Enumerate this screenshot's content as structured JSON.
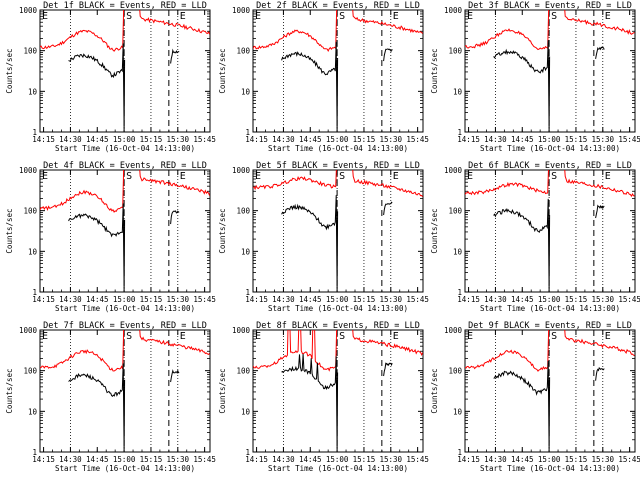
{
  "figure": {
    "background": "#ffffff",
    "colors": {
      "events": "#000000",
      "lld": "#ff0000",
      "axes": "#000000"
    }
  },
  "chart_data": [
    {
      "type": "line",
      "title": "Det 1f BLACK = Events, RED = LLD",
      "ylabel": "Counts/sec",
      "xlabel": "Start Time (16-Oct-04 14:13:00)",
      "xticks": [
        "14:15",
        "14:30",
        "14:45",
        "15:00",
        "15:15",
        "15:30",
        "15:45"
      ],
      "yticks": [
        "1",
        "10",
        "100",
        "1000"
      ],
      "ylim": [
        1,
        1000
      ],
      "yscale": "log",
      "xlim_minutes": [
        0,
        95
      ],
      "grid": false,
      "markers": [
        {
          "label": "E",
          "t": 0,
          "style": "none"
        },
        {
          "label": "",
          "t": 17,
          "style": "dotted"
        },
        {
          "label": "S",
          "t": 47,
          "style": "dotted"
        },
        {
          "label": "",
          "t": 62,
          "style": "dotted"
        },
        {
          "label": "E",
          "t": 77,
          "style": "dotted"
        }
      ],
      "dashed": [
        {
          "t": 47
        },
        {
          "t": 72
        }
      ],
      "variant": "normal",
      "black_scale": 1.0,
      "red_scale": 1.0
    },
    {
      "type": "line",
      "title": "Det 2f BLACK = Events, RED = LLD",
      "ylabel": "Counts/sec",
      "xlabel": "Start Time (16-Oct-04 14:13:00)",
      "xticks": [
        "14:15",
        "14:30",
        "14:45",
        "15:00",
        "15:15",
        "15:30",
        "15:45"
      ],
      "yticks": [
        "1",
        "10",
        "100",
        "1000"
      ],
      "ylim": [
        1,
        1000
      ],
      "yscale": "log",
      "xlim_minutes": [
        0,
        95
      ],
      "grid": false,
      "markers": [
        {
          "label": "E",
          "t": 0,
          "style": "none"
        },
        {
          "label": "",
          "t": 17,
          "style": "dotted"
        },
        {
          "label": "S",
          "t": 47,
          "style": "dotted"
        },
        {
          "label": "",
          "t": 62,
          "style": "dotted"
        },
        {
          "label": "E",
          "t": 77,
          "style": "dotted"
        }
      ],
      "dashed": [
        {
          "t": 47
        },
        {
          "t": 72
        }
      ],
      "variant": "normal",
      "black_scale": 1.1,
      "red_scale": 1.0
    },
    {
      "type": "line",
      "title": "Det 3f BLACK = Events, RED = LLD",
      "ylabel": "Counts/sec",
      "xlabel": "Start Time (16-Oct-04 14:13:00)",
      "xticks": [
        "14:15",
        "14:30",
        "14:45",
        "15:00",
        "15:15",
        "15:30",
        "15:45"
      ],
      "yticks": [
        "1",
        "10",
        "100",
        "1000"
      ],
      "ylim": [
        1,
        1000
      ],
      "yscale": "log",
      "xlim_minutes": [
        0,
        95
      ],
      "grid": false,
      "markers": [
        {
          "label": "E",
          "t": 0,
          "style": "none"
        },
        {
          "label": "",
          "t": 17,
          "style": "dotted"
        },
        {
          "label": "S",
          "t": 47,
          "style": "dotted"
        },
        {
          "label": "",
          "t": 62,
          "style": "dotted"
        },
        {
          "label": "E",
          "t": 77,
          "style": "dotted"
        }
      ],
      "dashed": [
        {
          "t": 47
        },
        {
          "t": 72
        }
      ],
      "variant": "normal",
      "black_scale": 1.2,
      "red_scale": 1.05
    },
    {
      "type": "line",
      "title": "Det 4f BLACK = Events, RED = LLD",
      "ylabel": "Counts/sec",
      "xlabel": "Start Time (16-Oct-04 14:13:00)",
      "xticks": [
        "14:15",
        "14:30",
        "14:45",
        "15:00",
        "15:15",
        "15:30",
        "15:45"
      ],
      "yticks": [
        "1",
        "10",
        "100",
        "1000"
      ],
      "ylim": [
        1,
        1000
      ],
      "yscale": "log",
      "xlim_minutes": [
        0,
        95
      ],
      "grid": false,
      "markers": [
        {
          "label": "E",
          "t": 0,
          "style": "none"
        },
        {
          "label": "",
          "t": 17,
          "style": "dotted"
        },
        {
          "label": "S",
          "t": 47,
          "style": "dotted"
        },
        {
          "label": "",
          "t": 62,
          "style": "dotted"
        },
        {
          "label": "E",
          "t": 77,
          "style": "dotted"
        }
      ],
      "dashed": [
        {
          "t": 47
        },
        {
          "t": 72
        }
      ],
      "variant": "normal",
      "black_scale": 1.0,
      "red_scale": 0.95
    },
    {
      "type": "line",
      "title": "Det 5f BLACK = Events, RED = LLD",
      "ylabel": "Counts/sec",
      "xlabel": "Start Time (16-Oct-04 14:13:00)",
      "xticks": [
        "14:15",
        "14:30",
        "14:45",
        "15:00",
        "15:15",
        "15:30",
        "15:45"
      ],
      "yticks": [
        "1",
        "10",
        "100",
        "1000"
      ],
      "ylim": [
        1,
        1000
      ],
      "yscale": "log",
      "xlim_minutes": [
        0,
        95
      ],
      "grid": false,
      "markers": [
        {
          "label": "E",
          "t": 0,
          "style": "none"
        },
        {
          "label": "",
          "t": 17,
          "style": "dotted"
        },
        {
          "label": "S",
          "t": 47,
          "style": "dotted"
        },
        {
          "label": "",
          "t": 62,
          "style": "dotted"
        },
        {
          "label": "E",
          "t": 77,
          "style": "dotted"
        }
      ],
      "dashed": [
        {
          "t": 47
        },
        {
          "t": 72
        }
      ],
      "variant": "high",
      "black_scale": 1.6,
      "red_scale": 2.2
    },
    {
      "type": "line",
      "title": "Det 6f BLACK = Events, RED = LLD",
      "ylabel": "Counts/sec",
      "xlabel": "Start Time (16-Oct-04 14:13:00)",
      "xticks": [
        "14:15",
        "14:30",
        "14:45",
        "15:00",
        "15:15",
        "15:30",
        "15:45"
      ],
      "yticks": [
        "1",
        "10",
        "100",
        "1000"
      ],
      "ylim": [
        1,
        1000
      ],
      "yscale": "log",
      "xlim_minutes": [
        0,
        95
      ],
      "grid": false,
      "markers": [
        {
          "label": "E",
          "t": 0,
          "style": "none"
        },
        {
          "label": "",
          "t": 17,
          "style": "dotted"
        },
        {
          "label": "S",
          "t": 47,
          "style": "dotted"
        },
        {
          "label": "",
          "t": 62,
          "style": "dotted"
        },
        {
          "label": "E",
          "t": 77,
          "style": "dotted"
        }
      ],
      "dashed": [
        {
          "t": 47
        },
        {
          "t": 72
        }
      ],
      "variant": "high",
      "black_scale": 1.3,
      "red_scale": 1.6
    },
    {
      "type": "line",
      "title": "Det 7f BLACK = Events, RED = LLD",
      "ylabel": "Counts/sec",
      "xlabel": "Start Time (16-Oct-04 14:13:00)",
      "xticks": [
        "14:15",
        "14:30",
        "14:45",
        "15:00",
        "15:15",
        "15:30",
        "15:45"
      ],
      "yticks": [
        "1",
        "10",
        "100",
        "1000"
      ],
      "ylim": [
        1,
        1000
      ],
      "yscale": "log",
      "xlim_minutes": [
        0,
        95
      ],
      "grid": false,
      "markers": [
        {
          "label": "E",
          "t": 0,
          "style": "none"
        },
        {
          "label": "",
          "t": 17,
          "style": "dotted"
        },
        {
          "label": "S",
          "t": 47,
          "style": "dotted"
        },
        {
          "label": "",
          "t": 62,
          "style": "dotted"
        },
        {
          "label": "E",
          "t": 77,
          "style": "dotted"
        }
      ],
      "dashed": [
        {
          "t": 47
        },
        {
          "t": 72
        }
      ],
      "variant": "normal",
      "black_scale": 1.0,
      "red_scale": 1.0
    },
    {
      "type": "line",
      "title": "Det 8f BLACK = Events, RED = LLD",
      "ylabel": "Counts/sec",
      "xlabel": "Start Time (16-Oct-04 14:13:00)",
      "xticks": [
        "14:15",
        "14:30",
        "14:45",
        "15:00",
        "15:15",
        "15:30",
        "15:45"
      ],
      "yticks": [
        "1",
        "10",
        "100",
        "1000"
      ],
      "ylim": [
        1,
        1000
      ],
      "yscale": "log",
      "xlim_minutes": [
        0,
        95
      ],
      "grid": false,
      "markers": [
        {
          "label": "E",
          "t": 0,
          "style": "none"
        },
        {
          "label": "",
          "t": 17,
          "style": "dotted"
        },
        {
          "label": "S",
          "t": 47,
          "style": "dotted"
        },
        {
          "label": "",
          "t": 62,
          "style": "dotted"
        },
        {
          "label": "E",
          "t": 77,
          "style": "dotted"
        }
      ],
      "dashed": [
        {
          "t": 47
        },
        {
          "t": 72
        }
      ],
      "variant": "spiky",
      "black_scale": 1.5,
      "red_scale": 1.0
    },
    {
      "type": "line",
      "title": "Det 9f BLACK = Events, RED = LLD",
      "ylabel": "Counts/sec",
      "xlabel": "Start Time (16-Oct-04 14:13:00)",
      "xticks": [
        "14:15",
        "14:30",
        "14:45",
        "15:00",
        "15:15",
        "15:30",
        "15:45"
      ],
      "yticks": [
        "1",
        "10",
        "100",
        "1000"
      ],
      "ylim": [
        1,
        1000
      ],
      "yscale": "log",
      "xlim_minutes": [
        0,
        95
      ],
      "grid": false,
      "markers": [
        {
          "label": "E",
          "t": 0,
          "style": "none"
        },
        {
          "label": "",
          "t": 17,
          "style": "dotted"
        },
        {
          "label": "S",
          "t": 47,
          "style": "dotted"
        },
        {
          "label": "",
          "t": 62,
          "style": "dotted"
        },
        {
          "label": "E",
          "t": 77,
          "style": "dotted"
        }
      ],
      "dashed": [
        {
          "t": 47
        },
        {
          "t": 72
        }
      ],
      "variant": "normal",
      "black_scale": 1.15,
      "red_scale": 1.0
    }
  ]
}
